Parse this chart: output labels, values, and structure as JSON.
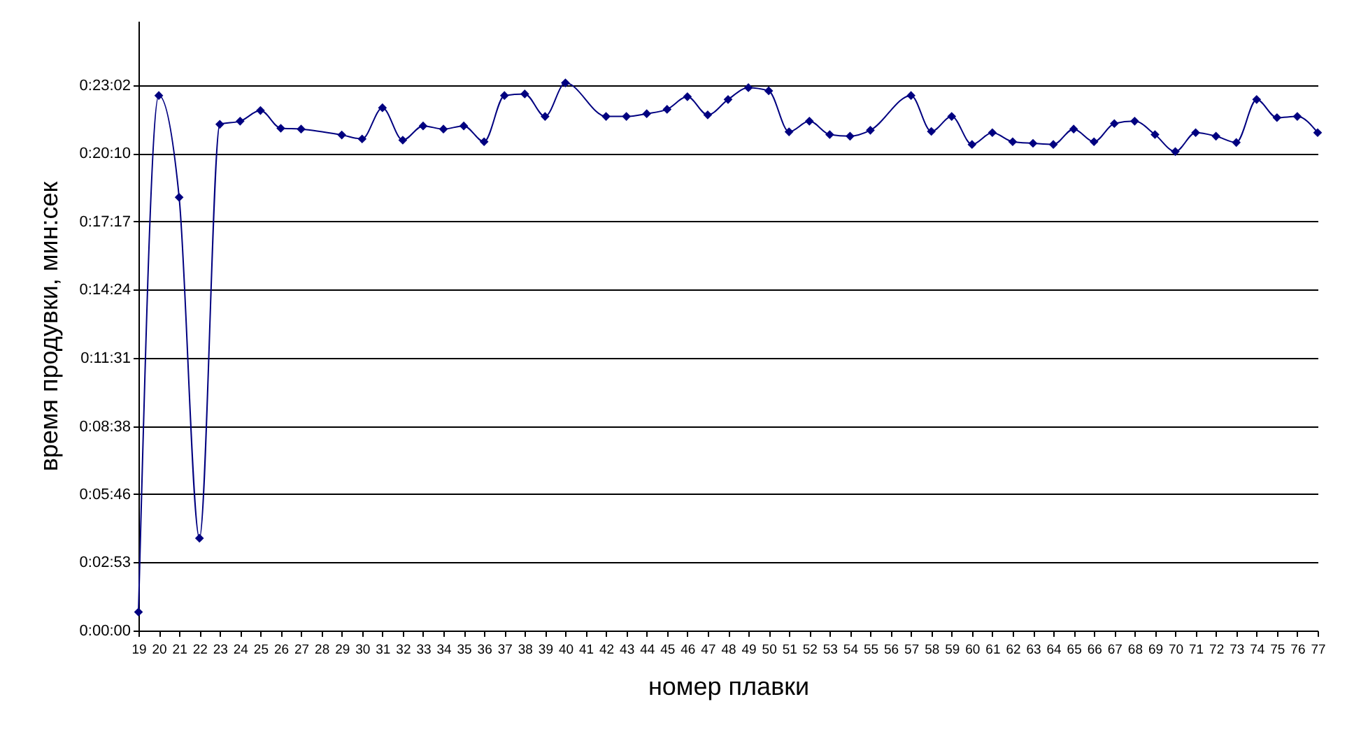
{
  "chart_data": {
    "type": "line",
    "xlabel": "номер плавки",
    "ylabel": "время продувки, мин:сек",
    "categories": [
      "19",
      "20",
      "21",
      "22",
      "23",
      "24",
      "25",
      "26",
      "27",
      "28",
      "29",
      "30",
      "31",
      "32",
      "33",
      "34",
      "35",
      "36",
      "37",
      "38",
      "39",
      "40",
      "41",
      "42",
      "43",
      "44",
      "45",
      "46",
      "47",
      "48",
      "49",
      "50",
      "51",
      "52",
      "53",
      "54",
      "55",
      "56",
      "57",
      "58",
      "59",
      "60",
      "61",
      "62",
      "63",
      "64",
      "65",
      "66",
      "67",
      "68",
      "69",
      "70",
      "71",
      "72",
      "73",
      "74",
      "75",
      "76",
      "77"
    ],
    "series": [
      {
        "color": "#000080",
        "values": [
          47,
          1356,
          1098,
          234,
          1283,
          1291,
          1318,
          1273,
          1271,
          null,
          1256,
          1246,
          1325,
          1243,
          1279,
          1271,
          1279,
          1239,
          1356,
          1360,
          1303,
          1388,
          null,
          1303,
          1303,
          1310,
          1321,
          1353,
          1307,
          1346,
          1376,
          1368,
          1264,
          1291,
          1257,
          1253,
          1268,
          null,
          1356,
          1265,
          1303,
          1232,
          1262,
          1239,
          1235,
          1232,
          1271,
          1239,
          1285,
          1291,
          1257,
          1214,
          1262,
          1253,
          1237,
          1346,
          1300,
          1303,
          1262
        ]
      }
    ],
    "ylim": [
      0,
      1545
    ],
    "yticks": [
      {
        "value": 0,
        "label": "0:00:00"
      },
      {
        "value": 173,
        "label": "0:02:53"
      },
      {
        "value": 346,
        "label": "0:05:46"
      },
      {
        "value": 518,
        "label": "0:08:38"
      },
      {
        "value": 691,
        "label": "0:11:31"
      },
      {
        "value": 864,
        "label": "0:14:24"
      },
      {
        "value": 1037,
        "label": "0:17:17"
      },
      {
        "value": 1210,
        "label": "0:20:10"
      },
      {
        "value": 1382,
        "label": "0:23:02"
      }
    ],
    "grid": "y",
    "marker": "diamond",
    "line_style": "solid"
  }
}
